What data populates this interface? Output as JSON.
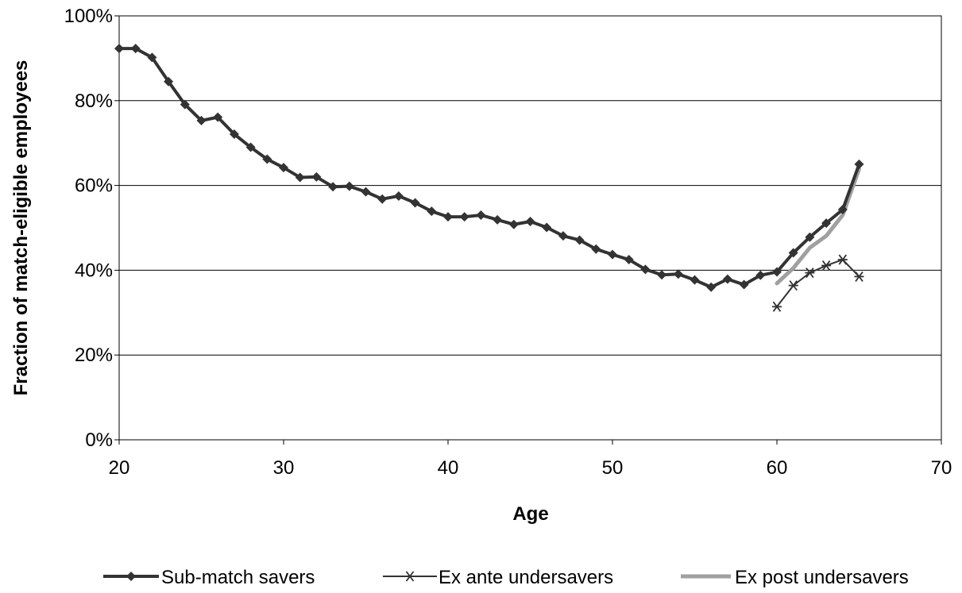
{
  "chart_data": {
    "type": "line",
    "xlabel": "Age",
    "ylabel": "Fraction of match-eligible employees",
    "xlim": [
      20,
      70
    ],
    "ylim": [
      0,
      100
    ],
    "x_ticks": [
      20,
      30,
      40,
      50,
      60,
      70
    ],
    "x_tick_labels": [
      "20",
      "30",
      "40",
      "50",
      "60",
      "70"
    ],
    "y_ticks": [
      0,
      20,
      40,
      60,
      80,
      100
    ],
    "y_tick_labels": [
      "0%",
      "20%",
      "40%",
      "60%",
      "80%",
      "100%"
    ],
    "grid": "horizontal",
    "legend_position": "bottom",
    "series": [
      {
        "name": "Sub-match savers",
        "color": "#333333",
        "marker": "diamond",
        "x": [
          20,
          21,
          22,
          23,
          24,
          25,
          26,
          27,
          28,
          29,
          30,
          31,
          32,
          33,
          34,
          35,
          36,
          37,
          38,
          39,
          40,
          41,
          42,
          43,
          44,
          45,
          46,
          47,
          48,
          49,
          50,
          51,
          52,
          53,
          54,
          55,
          56,
          57,
          58,
          59,
          60,
          61,
          62,
          63,
          64,
          65
        ],
        "values": [
          92.3,
          92.3,
          90.2,
          84.5,
          79.1,
          75.3,
          76.1,
          72.1,
          69.0,
          66.2,
          64.2,
          61.9,
          62.0,
          59.7,
          59.8,
          58.5,
          56.8,
          57.5,
          55.9,
          53.9,
          52.6,
          52.6,
          53.0,
          51.9,
          50.8,
          51.5,
          50.1,
          48.1,
          47.1,
          45.0,
          43.7,
          42.5,
          40.2,
          38.9,
          39.1,
          37.7,
          36.0,
          37.9,
          36.6,
          38.8,
          39.6,
          44.1,
          47.8,
          51.1,
          54.3,
          65.0
        ]
      },
      {
        "name": "Ex ante undersavers",
        "color": "#333333",
        "marker": "asterisk",
        "x": [
          60,
          61,
          62,
          63,
          64,
          65
        ],
        "values": [
          31.4,
          36.4,
          39.4,
          41.1,
          42.5,
          38.5
        ]
      },
      {
        "name": "Ex post undersavers",
        "color": "#a0a0a0",
        "marker": "none",
        "x": [
          60,
          61,
          62,
          63,
          64,
          65
        ],
        "values": [
          36.9,
          40.5,
          45.3,
          48.1,
          53.0,
          63.9
        ]
      }
    ]
  }
}
